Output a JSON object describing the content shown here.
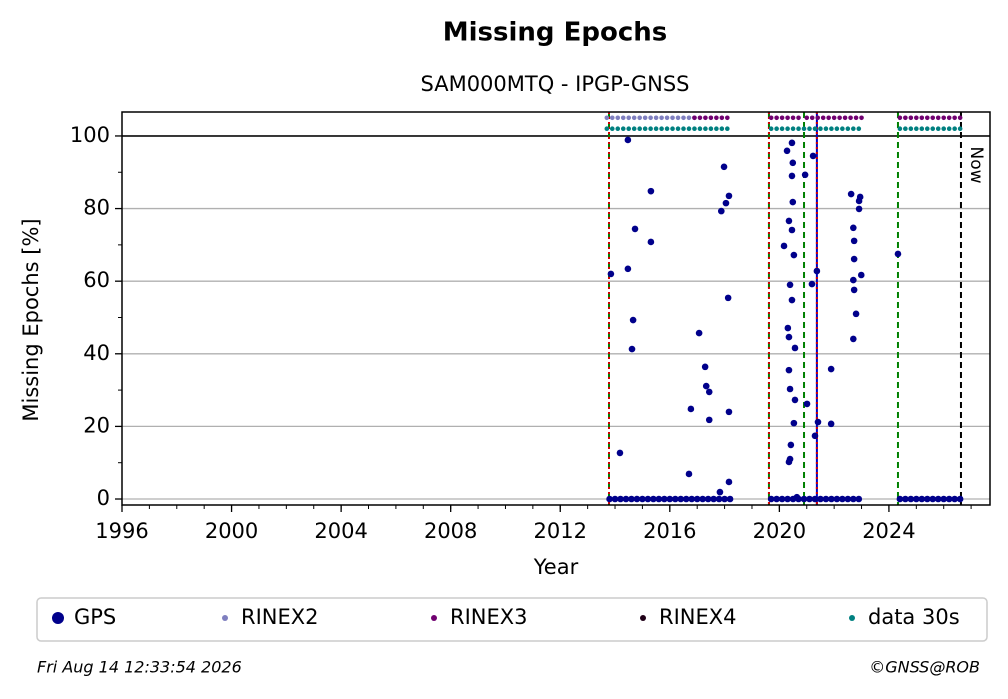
{
  "chart_data": {
    "type": "scatter",
    "title": "Missing Epochs",
    "subtitle": "SAM000MTQ - IPGP-GNSS",
    "xlabel": "Year",
    "ylabel": "Missing Epochs [%]",
    "xlim": [
      1996,
      2027.69
    ],
    "ylim": [
      -1.65,
      106.6
    ],
    "xticks": [
      1996,
      2000,
      2004,
      2008,
      2012,
      2016,
      2020,
      2024
    ],
    "yticks": [
      0,
      20,
      40,
      60,
      80,
      100
    ],
    "grid": true,
    "hline": 100,
    "vlines": [
      {
        "x": 2013.78,
        "color": "#008000",
        "style": "dashed"
      },
      {
        "x": 2013.78,
        "color": "#d00000",
        "style": "dotted"
      },
      {
        "x": 2019.62,
        "color": "#008000",
        "style": "dashed"
      },
      {
        "x": 2019.62,
        "color": "#d00000",
        "style": "dotted"
      },
      {
        "x": 2020.9,
        "color": "#008000",
        "style": "dashed"
      },
      {
        "x": 2021.37,
        "color": "#0000c0",
        "style": "solid"
      },
      {
        "x": 2021.37,
        "color": "#d00000",
        "style": "dotted"
      },
      {
        "x": 2024.33,
        "color": "#008000",
        "style": "dashed"
      }
    ],
    "now": {
      "x": 2026.63,
      "label": "Now"
    },
    "legend": "bottom",
    "series": [
      {
        "name": "GPS",
        "color": "#00008b",
        "x": [
          2013.85,
          2014.18,
          2014.47,
          2014.47,
          2014.73,
          2014.66,
          2014.62,
          2015.31,
          2015.31,
          2016.7,
          2016.77,
          2017.07,
          2017.29,
          2017.33,
          2017.44,
          2017.44,
          2017.83,
          2017.88,
          2017.98,
          2018.05,
          2018.16,
          2018.13,
          2018.16,
          2018.16,
          2020.17,
          2020.28,
          2020.46,
          2020.35,
          2020.39,
          2020.31,
          2020.35,
          2020.35,
          2020.35,
          2020.39,
          2020.42,
          2020.49,
          2020.46,
          2020.49,
          2020.46,
          2020.53,
          2020.57,
          2020.53,
          2020.57,
          2020.39,
          2020.46,
          2020.64,
          2020.94,
          2021.01,
          2021.19,
          2021.23,
          2021.3,
          2021.37,
          2021.41,
          2021.89,
          2021.89,
          2022.62,
          2022.7,
          2022.73,
          2022.7,
          2022.73,
          2022.8,
          2022.7,
          2022.91,
          2022.95,
          2022.91,
          2022.99,
          2022.73,
          2024.33,
          2013.8,
          2014.0,
          2014.2,
          2014.4,
          2014.6,
          2014.8,
          2015.0,
          2015.2,
          2015.4,
          2015.6,
          2015.8,
          2016.0,
          2016.2,
          2016.4,
          2016.6,
          2016.8,
          2017.0,
          2017.2,
          2017.4,
          2017.6,
          2017.8,
          2018.0,
          2018.2,
          2019.7,
          2019.9,
          2020.1,
          2020.3,
          2020.5,
          2020.7,
          2020.9,
          2021.1,
          2021.3,
          2021.5,
          2021.7,
          2021.9,
          2022.1,
          2022.3,
          2022.5,
          2022.7,
          2022.9,
          2024.4,
          2024.6,
          2024.8,
          2025.0,
          2025.2,
          2025.4,
          2025.6,
          2025.8,
          2026.0,
          2026.2,
          2026.4,
          2026.6
        ],
        "values": [
          62,
          12.7,
          98.9,
          63.4,
          74.4,
          49.3,
          41.3,
          84.8,
          70.8,
          6.9,
          24.8,
          45.7,
          36.4,
          31.1,
          29.5,
          21.8,
          1.9,
          79.3,
          91.5,
          81.5,
          83.5,
          55.4,
          4.7,
          24,
          69.7,
          95.9,
          98.1,
          76.6,
          59,
          47.1,
          44.6,
          35.5,
          10.2,
          11,
          14.9,
          92.6,
          89,
          81.8,
          74.1,
          67.2,
          27.3,
          20.9,
          41.6,
          30.3,
          54.8,
          0.5,
          89.3,
          26.2,
          59.2,
          94.5,
          17.4,
          62.8,
          21.2,
          35.8,
          20.7,
          84,
          74.7,
          66.1,
          60.3,
          57.6,
          51,
          44.1,
          82.1,
          83.2,
          79.9,
          61.7,
          71.1,
          67.5,
          0,
          0,
          0,
          0,
          0,
          0,
          0,
          0,
          0,
          0,
          0,
          0,
          0,
          0,
          0,
          0,
          0,
          0,
          0,
          0,
          0,
          0,
          0,
          0,
          0,
          0,
          0,
          0,
          0,
          0,
          0,
          0,
          0,
          0,
          0,
          0,
          0,
          0,
          0,
          0,
          0,
          0,
          0,
          0,
          0,
          0,
          0,
          0,
          0,
          0,
          0,
          0
        ]
      },
      {
        "name": "RINEX2",
        "color": "#7f7fbf",
        "x": [
          2013.7,
          2013.9,
          2014.1,
          2014.3,
          2014.5,
          2014.7,
          2014.9,
          2015.1,
          2015.3,
          2015.5,
          2015.7,
          2015.9,
          2016.1,
          2016.3,
          2016.5,
          2016.7,
          2016.9
        ],
        "values": [
          105,
          105,
          105,
          105,
          105,
          105,
          105,
          105,
          105,
          105,
          105,
          105,
          105,
          105,
          105,
          105,
          105
        ]
      },
      {
        "name": "RINEX3",
        "color": "#700070",
        "x": [
          2016.9,
          2017.1,
          2017.3,
          2017.5,
          2017.7,
          2017.9,
          2018.1,
          2019.7,
          2019.9,
          2020.1,
          2020.3,
          2020.5,
          2020.7,
          2021.0,
          2021.2,
          2021.4,
          2021.6,
          2021.8,
          2022.0,
          2022.2,
          2022.4,
          2022.6,
          2022.8,
          2023.0,
          2024.4,
          2024.6,
          2024.8,
          2025.0,
          2025.2,
          2025.4,
          2025.6,
          2025.8,
          2026.0,
          2026.2,
          2026.4,
          2026.6
        ],
        "values": [
          105,
          105,
          105,
          105,
          105,
          105,
          105,
          105,
          105,
          105,
          105,
          105,
          105,
          105,
          105,
          105,
          105,
          105,
          105,
          105,
          105,
          105,
          105,
          105,
          105,
          105,
          105,
          105,
          105,
          105,
          105,
          105,
          105,
          105,
          105,
          105
        ]
      },
      {
        "name": "RINEX4",
        "color": "#200018",
        "x": [],
        "values": []
      },
      {
        "name": "data 30s",
        "color": "#008080",
        "x": [
          2013.7,
          2013.9,
          2014.1,
          2014.3,
          2014.5,
          2014.7,
          2014.9,
          2015.1,
          2015.3,
          2015.5,
          2015.7,
          2015.9,
          2016.1,
          2016.3,
          2016.5,
          2016.7,
          2016.9,
          2017.1,
          2017.3,
          2017.5,
          2017.7,
          2017.9,
          2018.1,
          2019.7,
          2019.9,
          2020.1,
          2020.3,
          2020.5,
          2020.7,
          2020.9,
          2021.1,
          2021.3,
          2021.5,
          2021.7,
          2021.9,
          2022.1,
          2022.3,
          2022.5,
          2022.7,
          2022.9,
          2024.4,
          2024.6,
          2024.8,
          2025.0,
          2025.2,
          2025.4,
          2025.6,
          2025.8,
          2026.0,
          2026.2,
          2026.4,
          2026.6
        ],
        "values": [
          102,
          102,
          102,
          102,
          102,
          102,
          102,
          102,
          102,
          102,
          102,
          102,
          102,
          102,
          102,
          102,
          102,
          102,
          102,
          102,
          102,
          102,
          102,
          102,
          102,
          102,
          102,
          102,
          102,
          102,
          102,
          102,
          102,
          102,
          102,
          102,
          102,
          102,
          102,
          102,
          102,
          102,
          102,
          102,
          102,
          102,
          102,
          102,
          102,
          102,
          102,
          102
        ]
      }
    ],
    "footer_left": "Fri Aug 14 12:33:54 2026",
    "footer_right": "©GNSS@ROB"
  }
}
